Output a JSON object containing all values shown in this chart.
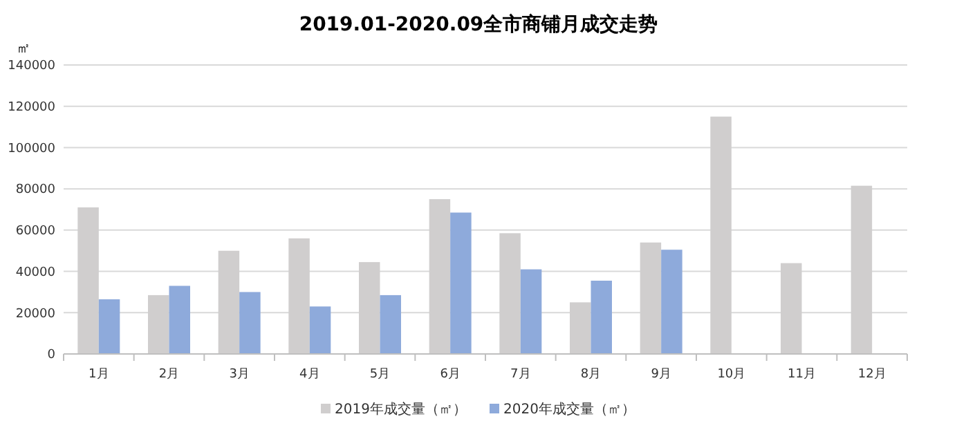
{
  "chart_data": {
    "type": "bar",
    "title": "2019.01-2020.09全市商铺月成交走势",
    "ylabel": "㎡",
    "categories": [
      "1月",
      "2月",
      "3月",
      "4月",
      "5月",
      "6月",
      "7月",
      "8月",
      "9月",
      "10月",
      "11月",
      "12月"
    ],
    "series": [
      {
        "name": "2019年成交量（㎡）",
        "color": "#d0cece",
        "values": [
          71000,
          28500,
          50000,
          56000,
          44500,
          75000,
          58500,
          25000,
          54000,
          115000,
          44000,
          81500
        ]
      },
      {
        "name": "2020年成交量（㎡）",
        "color": "#8eaadb",
        "values": [
          26500,
          33000,
          30000,
          23000,
          28500,
          68500,
          41000,
          35500,
          50500,
          null,
          null,
          null
        ]
      }
    ],
    "ylim": [
      0,
      140000
    ],
    "yticks": [
      0,
      20000,
      40000,
      60000,
      80000,
      100000,
      120000,
      140000
    ],
    "grid": "y",
    "legend": "bottom"
  }
}
